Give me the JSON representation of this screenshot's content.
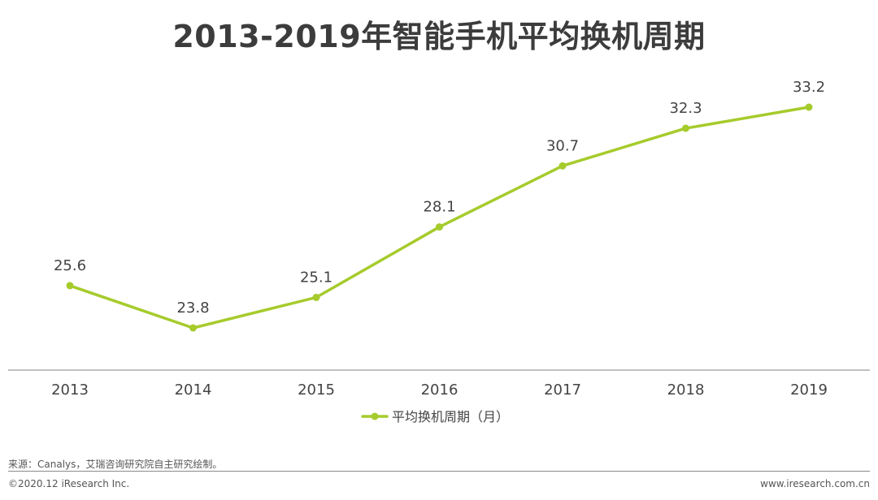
{
  "title": "2013-2019年智能手机平均换机周期",
  "chart_data": {
    "type": "line",
    "x": [
      "2013",
      "2014",
      "2015",
      "2016",
      "2017",
      "2018",
      "2019"
    ],
    "series": [
      {
        "name": "平均换机周期（月）",
        "values": [
          25.6,
          23.8,
          25.1,
          28.1,
          30.7,
          32.3,
          33.2
        ],
        "color": "#a6cb2c"
      }
    ],
    "ylim": [
      20,
      36
    ],
    "grid": false,
    "legend_position": "bottom-center",
    "show_data_labels": true
  },
  "footer": {
    "source": "来源：Canalys，艾瑞咨询研究院自主研究绘制。",
    "copyright": "©2020.12 iResearch Inc.",
    "website": "www.iresearch.com.cn"
  }
}
